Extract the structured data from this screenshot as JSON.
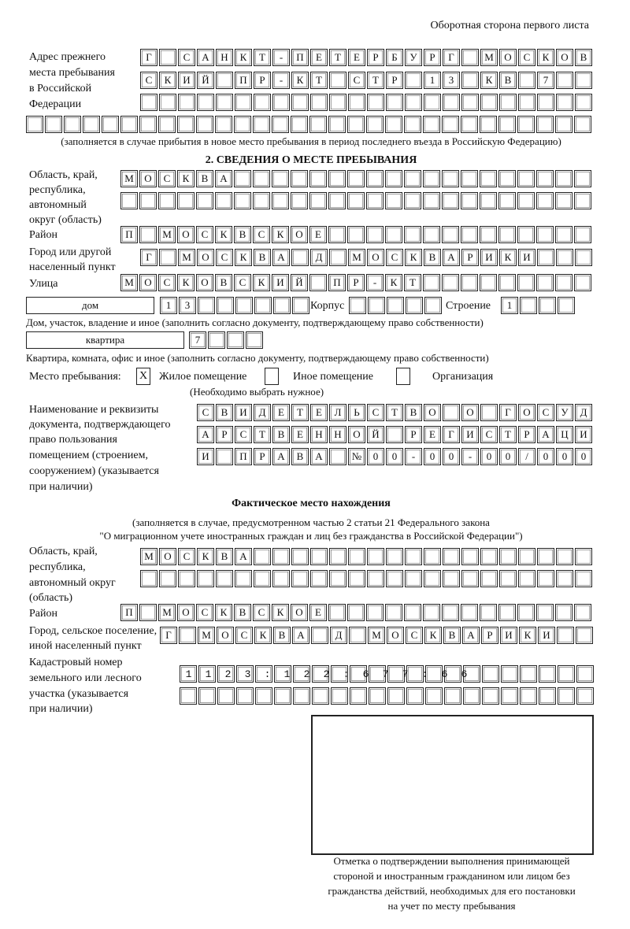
{
  "header": {
    "page_side": "Оборотная сторона первого листа"
  },
  "previous_address": {
    "label": [
      "Адрес прежнего",
      "места пребывания",
      "в Российской",
      "Федерации"
    ],
    "rows": [
      "Г САНКТ-ПЕТЕРБУРГ МОСКОВ",
      "СКИЙ ПР-КТ СТР 13 КВ 7",
      "",
      ""
    ],
    "note": "(заполняется в случае прибытия в новое место пребывания в период последнего въезда в Российскую Федерацию)"
  },
  "section2": {
    "title": "2. СВЕДЕНИЯ О МЕСТЕ ПРЕБЫВАНИЯ",
    "region": {
      "label": [
        "Область, край,",
        "республика,",
        "автономный",
        "округ (область)"
      ],
      "rows": [
        "МОСКВА",
        ""
      ]
    },
    "district": {
      "label": "Район",
      "value": "П МОСКВСКОЕ"
    },
    "city": {
      "label": [
        "Город или другой",
        "населенный пункт"
      ],
      "value": "Г МОСКВА Д МОСКВАРИКИ"
    },
    "street": {
      "label": "Улица",
      "value": "МОСКОВСКИЙ ПР-КТ"
    },
    "house": {
      "type": "дом",
      "number": "13",
      "korpus_label": "Корпус",
      "korpus": "",
      "building_label": "Строение",
      "building": "1",
      "note": "Дом, участок, владение и иное (заполнить согласно документу, подтверждающему право собственности)"
    },
    "apartment": {
      "type": "квартира",
      "number": "7",
      "note": "Квартира, комната, офис и иное (заполнить согласно документу, подтверждающему право собственности)"
    },
    "place_of_stay": {
      "label": "Место пребывания:",
      "options": [
        {
          "label": "Жилое помещение",
          "mark": "X",
          "checked": true
        },
        {
          "label": "Иное помещение",
          "mark": "",
          "checked": false
        },
        {
          "label": "Организация",
          "mark": "",
          "checked": false
        }
      ],
      "hint": "(Необходимо выбрать нужное)"
    },
    "document": {
      "label": [
        "Наименование и реквизиты",
        "документа, подтверждающего",
        "право пользования",
        "помещением (строением,",
        "сооружением) (указывается",
        "при наличии)"
      ],
      "rows": [
        "СВИДЕТЕЛЬСТВО О ГОСУД",
        "АРСТВЕННОЙ РЕГИСТРАЦИ",
        "И ПРАВА №00-00-00/000"
      ]
    }
  },
  "actual": {
    "title": "Фактическое место нахождения",
    "note": [
      "(заполняется в случае, предусмотренном частью 2 статьи 21 Федерального закона",
      "\"О миграционном учете иностранных граждан и лиц без гражданства в Российской Федерации\")"
    ],
    "region": {
      "label": [
        "Область, край,",
        "республика,",
        "автономный округ",
        "(область)"
      ],
      "rows": [
        "МОСКВА",
        ""
      ]
    },
    "district": {
      "label": "Район",
      "value": "П МОСКВСКОЕ"
    },
    "city": {
      "label": [
        "Город, сельское поселение,",
        "иной населенный пункт"
      ],
      "value": "Г МОСКВА Д МОСКВАРИКИ"
    },
    "cadastral": {
      "label": [
        "Кадастровый номер",
        "земельного или лесного",
        "участка (указывается",
        "при наличии)"
      ],
      "rows": [
        "1123:122:677:66",
        ""
      ]
    }
  },
  "confirmation": {
    "caption": [
      "Отметка о подтверждении выполнения принимающей",
      "стороной и иностранным гражданином или лицом без",
      "гражданства действий, необходимых для его постановки",
      "на учет по месту пребывания"
    ]
  }
}
